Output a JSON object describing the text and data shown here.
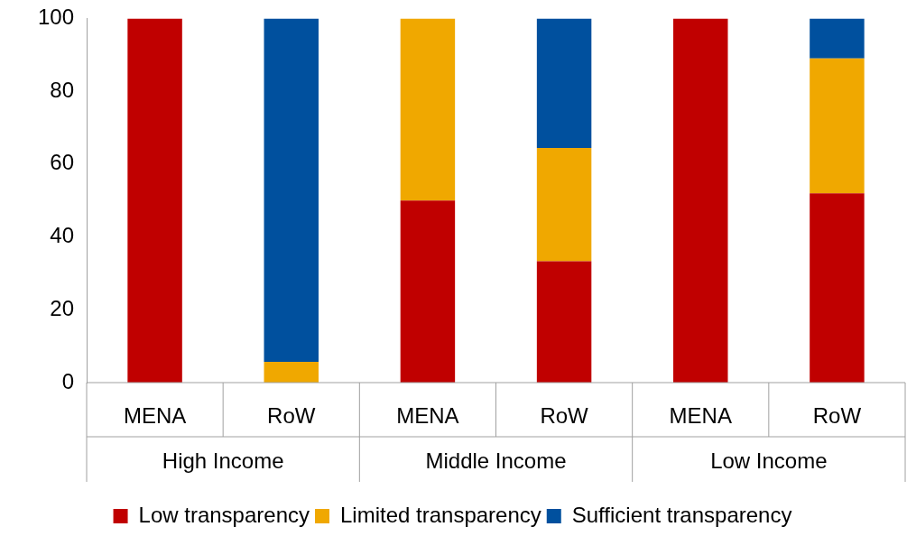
{
  "chart_data": {
    "type": "bar",
    "stacked": true,
    "categories": [
      "MENA",
      "RoW",
      "MENA",
      "RoW",
      "MENA",
      "RoW"
    ],
    "series": [
      {
        "name": "Low transparency",
        "color": "#c00000",
        "values": [
          100,
          0,
          50,
          33.3,
          100,
          52
        ]
      },
      {
        "name": "Limited transparency",
        "color": "#f0a800",
        "values": [
          0,
          5.7,
          50,
          31.1,
          0,
          37
        ]
      },
      {
        "name": "Sufficient transparency",
        "color": "#00509e",
        "values": [
          0,
          94.3,
          0,
          35.6,
          0,
          11
        ]
      }
    ],
    "annotations": [
      "High Income",
      "Middle Income",
      "Low Income"
    ],
    "ylim": [
      0,
      100
    ],
    "yticks": [
      0,
      20,
      40,
      60,
      80,
      100
    ],
    "grid": false,
    "legend": "bottom"
  }
}
